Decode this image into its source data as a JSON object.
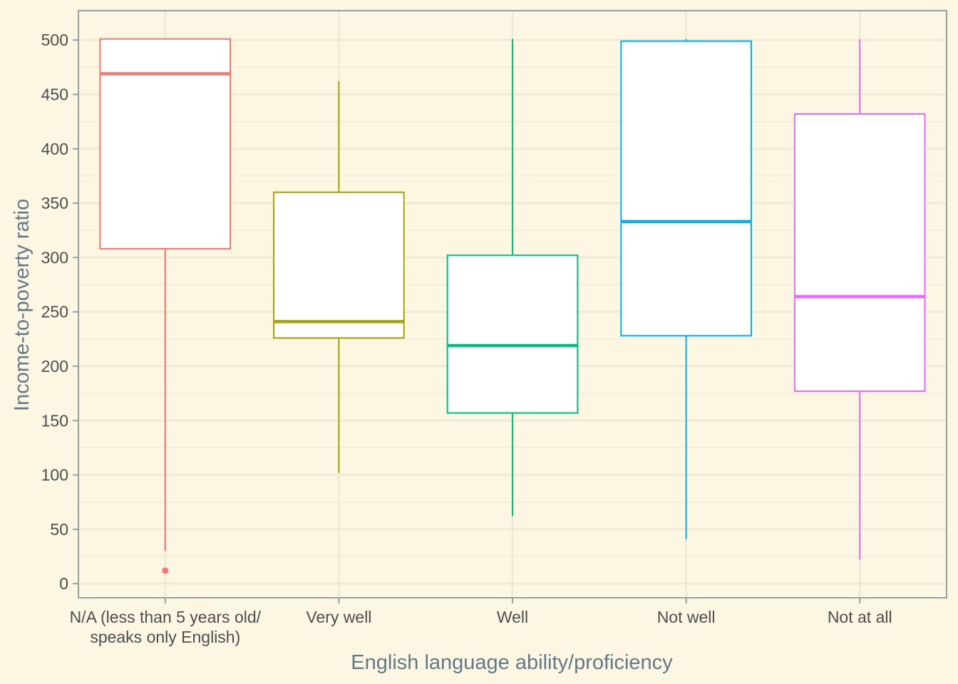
{
  "chart_data": {
    "type": "boxplot",
    "title": "",
    "xlabel": "English language ability/proficiency",
    "ylabel": "Income-to-poverty ratio",
    "ylim": [
      -13,
      527
    ],
    "yticks": [
      0,
      50,
      100,
      150,
      200,
      250,
      300,
      350,
      400,
      450,
      500
    ],
    "grid": true,
    "legend": "none",
    "background_color": "#fdf6e3",
    "grid_color": "#eee8d5",
    "panel_border_color": "#93a1a1",
    "categories": [
      {
        "label": [
          "N/A (less than 5 years old/",
          "speaks only English)"
        ],
        "color": "#f8766d",
        "min": 30,
        "q1": 308,
        "median": 469,
        "q3": 501,
        "max": 501,
        "outliers": [
          12
        ]
      },
      {
        "label": [
          "Very well"
        ],
        "color": "#a3a500",
        "min": 102,
        "q1": 226,
        "median": 241,
        "q3": 360,
        "max": 462,
        "outliers": []
      },
      {
        "label": [
          "Well"
        ],
        "color": "#00bf7d",
        "min": 62,
        "q1": 157,
        "median": 219,
        "q3": 302,
        "max": 501,
        "outliers": []
      },
      {
        "label": [
          "Not well"
        ],
        "color": "#00b0f6",
        "min": 41,
        "q1": 228,
        "median": 333,
        "q3": 499,
        "max": 501,
        "outliers": []
      },
      {
        "label": [
          "Not at all"
        ],
        "color": "#e76bf3",
        "min": 22,
        "q1": 177,
        "median": 264,
        "q3": 432,
        "max": 501,
        "outliers": []
      }
    ]
  }
}
